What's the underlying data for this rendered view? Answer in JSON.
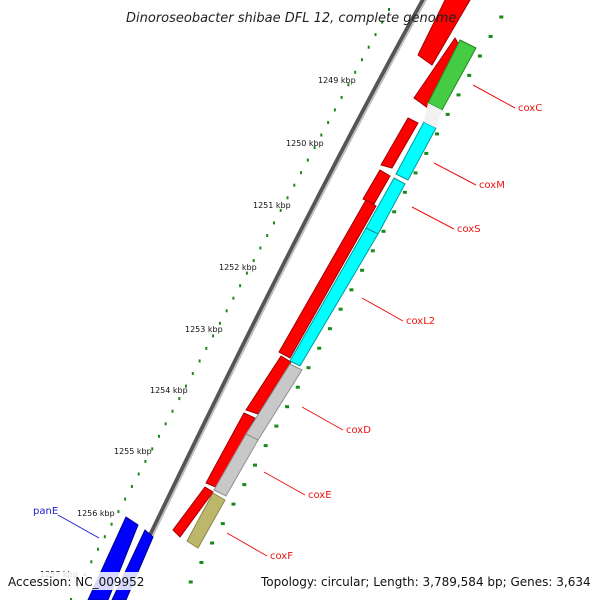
{
  "title": "Dinoroseobacter shibae DFL 12, complete genome",
  "footer": {
    "accession": "Accession: NC_009952",
    "summary": "Topology: circular; Length: 3,789,584 bp; Genes: 3,634"
  },
  "ticks": [
    {
      "label": "1249 kbp"
    },
    {
      "label": "1250 kbp"
    },
    {
      "label": "1251 kbp"
    },
    {
      "label": "1252 kbp"
    },
    {
      "label": "1253 kbp"
    },
    {
      "label": "1254 kbp"
    },
    {
      "label": "1255 kbp"
    },
    {
      "label": "1256 kbp"
    },
    {
      "label": "1257 kbp"
    }
  ],
  "genes": [
    {
      "name": "coxC",
      "color": "#ee1111"
    },
    {
      "name": "coxM",
      "color": "#ee1111"
    },
    {
      "name": "coxS",
      "color": "#ee1111"
    },
    {
      "name": "coxL2",
      "color": "#ee1111"
    },
    {
      "name": "coxD",
      "color": "#ee1111"
    },
    {
      "name": "coxE",
      "color": "#ee1111"
    },
    {
      "name": "coxF",
      "color": "#ee1111"
    },
    {
      "name": "panE",
      "color": "#1b1bcc"
    }
  ],
  "colors": {
    "backbone": "#777777",
    "forward_cds": "#ff0000",
    "blue_cds": "#0000ff",
    "cyan_cds": "#00ffff",
    "green_cds": "#44cc44",
    "grey_cds": "#c8c8c8",
    "olive_cds": "#bdb76b",
    "gc_dots": "#1a8a1a",
    "label_text": "#ee1111"
  }
}
